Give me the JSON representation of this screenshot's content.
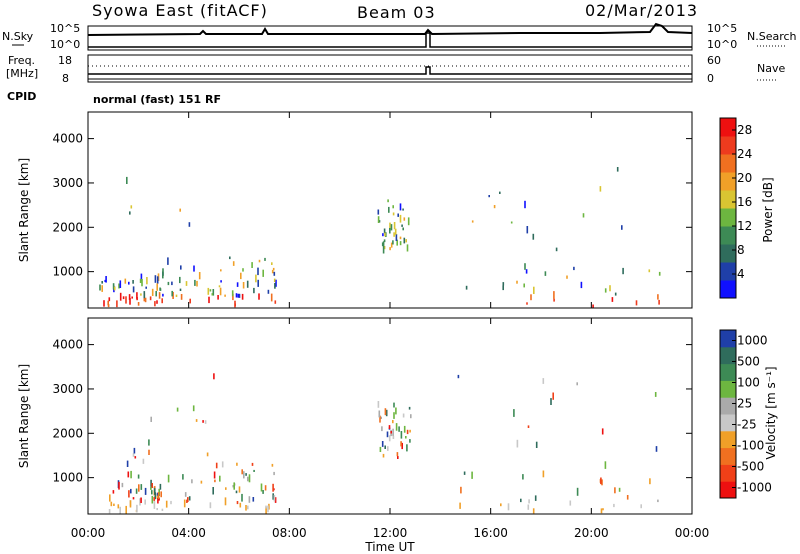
{
  "header": {
    "station": "Syowa East (fitACF)",
    "beam": "Beam 03",
    "date": "02/Mar/2013"
  },
  "left_labels": {
    "nsky": "N.Sky",
    "freq_line1": "Freq.",
    "freq_line2": "[MHz]",
    "cpid": "CPID"
  },
  "right_labels": {
    "nsearch": "N.Search",
    "nave": "Nave"
  },
  "mode_text": "normal (fast) 151 RF",
  "panel_ticks": {
    "noise_left": [
      "10^5",
      "10^0"
    ],
    "noise_right": [
      "10^5",
      "10^0"
    ],
    "freq_left": [
      "18",
      "8"
    ],
    "freq_right": [
      "60",
      "0"
    ]
  },
  "colors": {
    "frame": "#000000",
    "background": "#ffffff"
  },
  "chart_data": [
    {
      "type": "heatmap",
      "title": "",
      "xlabel": "Time UT",
      "ylabel": "Slant Range [km]",
      "x_ticks": [
        "00:00",
        "04:00",
        "08:00",
        "12:00",
        "16:00",
        "20:00",
        "00:00"
      ],
      "x_range_hours": [
        0,
        24
      ],
      "y_ticks": [
        "1000",
        "2000",
        "3000",
        "4000"
      ],
      "y_range_km": [
        180,
        4600
      ],
      "colorbar": {
        "label": "Power [dB]",
        "ticks": [
          "4",
          "8",
          "12",
          "16",
          "20",
          "24",
          "28"
        ],
        "range": [
          0,
          30
        ],
        "colors": [
          "#1010ff",
          "#1f3fa8",
          "#2f6c5c",
          "#3d8a55",
          "#6db640",
          "#d9c532",
          "#f0a028",
          "#f07020",
          "#ee3b1e",
          "#ee1010"
        ]
      },
      "echo_regions": [
        {
          "t": [
            0.4,
            3.0
          ],
          "r": [
            180,
            800
          ]
        },
        {
          "t": [
            1.5,
            5.0
          ],
          "r": [
            180,
            3300
          ]
        },
        {
          "t": [
            5.0,
            7.5
          ],
          "r": [
            180,
            1300
          ]
        },
        {
          "t": [
            11.5,
            12.8
          ],
          "r": [
            1400,
            2600
          ]
        },
        {
          "t": [
            14.5,
            22.8
          ],
          "r": [
            180,
            3300
          ]
        }
      ]
    },
    {
      "type": "heatmap",
      "title": "",
      "xlabel": "Time UT",
      "ylabel": "Slant Range [km]",
      "x_ticks": [
        "00:00",
        "04:00",
        "08:00",
        "12:00",
        "16:00",
        "20:00",
        "00:00"
      ],
      "x_range_hours": [
        0,
        24
      ],
      "y_ticks": [
        "1000",
        "2000",
        "3000",
        "4000"
      ],
      "y_range_km": [
        180,
        4600
      ],
      "colorbar": {
        "label": "Velocity [m s⁻¹]",
        "ticks": [
          "1000",
          "500",
          "100",
          "25",
          "-25",
          "-100",
          "-500",
          "-1000"
        ],
        "range": [
          -1000,
          1000
        ],
        "colors": [
          "#ee1010",
          "#f04018",
          "#f07020",
          "#f0a028",
          "#c8c8c8",
          "#aaaaaa",
          "#6db640",
          "#3d8a55",
          "#2f6c5c",
          "#1f3fa8"
        ]
      },
      "echo_regions": [
        {
          "t": [
            0.4,
            3.0
          ],
          "r": [
            180,
            800
          ]
        },
        {
          "t": [
            1.5,
            5.0
          ],
          "r": [
            180,
            3300
          ]
        },
        {
          "t": [
            5.0,
            7.5
          ],
          "r": [
            180,
            1300
          ]
        },
        {
          "t": [
            11.5,
            12.8
          ],
          "r": [
            1400,
            2600
          ]
        },
        {
          "t": [
            14.5,
            22.8
          ],
          "r": [
            180,
            3300
          ]
        }
      ]
    }
  ]
}
